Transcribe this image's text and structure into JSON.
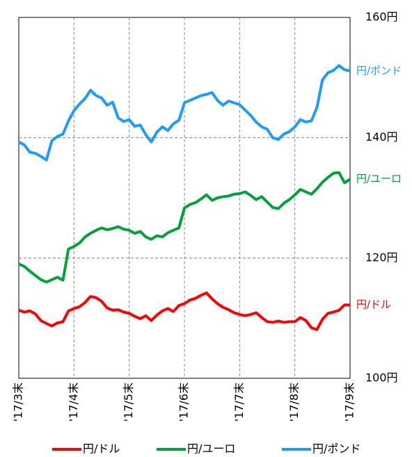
{
  "chart_data": {
    "type": "line",
    "categories": [
      "'17/3末",
      null,
      null,
      null,
      null,
      null,
      null,
      null,
      null,
      null,
      "'17/4末",
      null,
      null,
      null,
      null,
      null,
      null,
      null,
      null,
      null,
      "'17/5末",
      null,
      null,
      null,
      null,
      null,
      null,
      null,
      null,
      null,
      "'17/6末",
      null,
      null,
      null,
      null,
      null,
      null,
      null,
      null,
      null,
      "'17/7末",
      null,
      null,
      null,
      null,
      null,
      null,
      null,
      null,
      null,
      "'17/8末",
      null,
      null,
      null,
      null,
      null,
      null,
      null,
      null,
      null,
      "'17/9末"
    ],
    "ylim": [
      100,
      160
    ],
    "yticks": [
      {
        "value": 100,
        "label": "100円"
      },
      {
        "value": 120,
        "label": "120円"
      },
      {
        "value": 140,
        "label": "140円"
      },
      {
        "value": 160,
        "label": "160円"
      }
    ],
    "grid": true,
    "series": [
      {
        "name": "円/ドル",
        "color": "#ff0000",
        "values": [
          111.3,
          111,
          111.2,
          110.7,
          109.6,
          109.1,
          108.7,
          109.2,
          109.4,
          111.2,
          111.6,
          111.9,
          112.6,
          113.6,
          113.4,
          112.8,
          111.7,
          111.3,
          111.4,
          111,
          110.8,
          110.3,
          109.9,
          110.4,
          109.6,
          110.5,
          111.2,
          111.6,
          111.1,
          112.1,
          112.4,
          113,
          113.3,
          113.8,
          114.2,
          113.2,
          112.4,
          111.8,
          111.4,
          110.9,
          110.6,
          110.4,
          110.6,
          110.9,
          110.1,
          109.4,
          109.3,
          109.5,
          109.3,
          109.4,
          109.4,
          110.1,
          109.6,
          108.4,
          108.1,
          109.8,
          110.8,
          111,
          111.3,
          112.2,
          112.2
        ]
      },
      {
        "name": "円/ユーロ",
        "color": "#00a33a",
        "values": [
          119,
          118.6,
          117.8,
          117.1,
          116.4,
          116,
          116.4,
          116.8,
          116.3,
          121.5,
          121.9,
          122.5,
          123.5,
          124.1,
          124.6,
          125,
          124.7,
          124.9,
          125.2,
          124.8,
          124.6,
          124.1,
          124.4,
          123.5,
          123.1,
          123.7,
          123.5,
          124.2,
          124.6,
          125,
          128.3,
          128.9,
          129.2,
          129.8,
          130.5,
          129.6,
          130,
          130.2,
          130.3,
          130.6,
          130.7,
          131,
          130.4,
          129.7,
          130.2,
          129.3,
          128.4,
          128.2,
          129.1,
          129.7,
          130.5,
          131.4,
          131,
          130.6,
          131.5,
          132.6,
          133.4,
          134.1,
          134.2,
          132.5,
          133.1
        ]
      },
      {
        "name": "円/ポンド",
        "color": "#1e9bff",
        "values": [
          139.3,
          138.8,
          137.6,
          137.4,
          136.9,
          136.3,
          139.5,
          140.2,
          140.6,
          142.8,
          144.5,
          145.6,
          146.5,
          147.9,
          147,
          146.6,
          145.4,
          145.9,
          143.3,
          142.7,
          143,
          141.9,
          142.1,
          140.5,
          139.3,
          140.9,
          141.8,
          141.2,
          142.3,
          142.9,
          145.8,
          146.2,
          146.6,
          147,
          147.2,
          147.5,
          146.2,
          145.4,
          146.1,
          145.8,
          145.5,
          144.6,
          143.7,
          142.6,
          141.8,
          141.4,
          140,
          139.7,
          140.6,
          141,
          141.8,
          143,
          142.6,
          142.8,
          145,
          149.6,
          150.8,
          151.2,
          152,
          151.3,
          151.1
        ]
      }
    ]
  }
}
